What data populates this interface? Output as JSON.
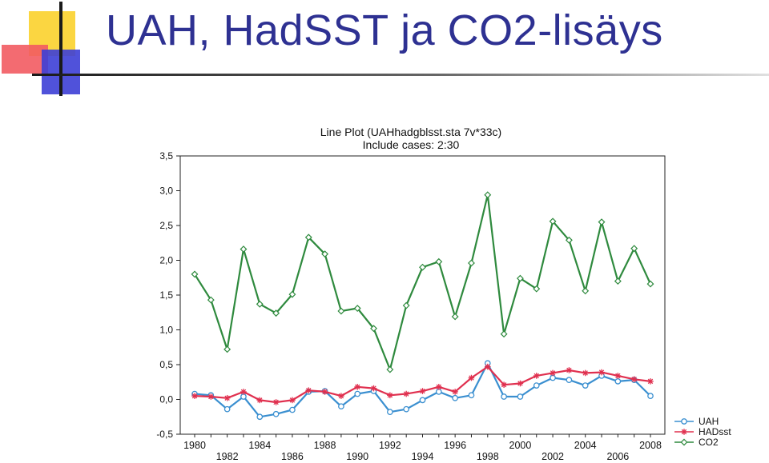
{
  "slide": {
    "title": "UAH, HadSST ja CO2-lisäys"
  },
  "colors": {
    "title": "#2e3192",
    "uah": "#3a8fd0",
    "hadsst": "#e0304f",
    "co2": "#2f8a3e"
  },
  "chart_data": {
    "type": "line",
    "title": "Line Plot (UAHhadgblsst.sta 7v*33c)",
    "subtitle": "Include cases: 2:30",
    "xlabel": "",
    "ylabel": "",
    "ylim": [
      -0.5,
      3.5
    ],
    "xlim": [
      1980,
      2008
    ],
    "grid": false,
    "legend_position": "bottom-right",
    "y_ticks": [
      "-0,5",
      "0,0",
      "0,5",
      "1,0",
      "1,5",
      "2,0",
      "2,5",
      "3,0",
      "3,5"
    ],
    "y_tick_values": [
      -0.5,
      0,
      0.5,
      1.0,
      1.5,
      2.0,
      2.5,
      3.0,
      3.5
    ],
    "x_ticks_upper": [
      "1980",
      "1984",
      "1988",
      "1992",
      "1996",
      "2000",
      "2004",
      "2008"
    ],
    "x_ticks_lower": [
      "1982",
      "1986",
      "1990",
      "1994",
      "1998",
      "2002",
      "2006"
    ],
    "x": [
      1980,
      1981,
      1982,
      1983,
      1984,
      1985,
      1986,
      1987,
      1988,
      1989,
      1990,
      1991,
      1992,
      1993,
      1994,
      1995,
      1996,
      1997,
      1998,
      1999,
      2000,
      2001,
      2002,
      2003,
      2004,
      2005,
      2006,
      2007,
      2008
    ],
    "series": [
      {
        "name": "UAH",
        "marker": "circle",
        "values": [
          0.08,
          0.06,
          -0.14,
          0.04,
          -0.25,
          -0.21,
          -0.15,
          0.11,
          0.12,
          -0.1,
          0.08,
          0.12,
          -0.18,
          -0.14,
          -0.01,
          0.11,
          0.02,
          0.06,
          0.52,
          0.04,
          0.04,
          0.2,
          0.31,
          0.28,
          0.2,
          0.34,
          0.26,
          0.28,
          0.05
        ]
      },
      {
        "name": "HADsst",
        "marker": "asterisk",
        "values": [
          0.05,
          0.04,
          0.02,
          0.11,
          -0.01,
          -0.04,
          -0.01,
          0.13,
          0.11,
          0.05,
          0.18,
          0.16,
          0.06,
          0.08,
          0.12,
          0.18,
          0.11,
          0.31,
          0.47,
          0.21,
          0.23,
          0.34,
          0.38,
          0.42,
          0.38,
          0.39,
          0.34,
          0.29,
          0.26
        ]
      },
      {
        "name": "CO2",
        "marker": "diamond",
        "values": [
          1.8,
          1.43,
          0.72,
          2.16,
          1.37,
          1.24,
          1.51,
          2.33,
          2.09,
          1.27,
          1.31,
          1.02,
          0.43,
          1.35,
          1.9,
          1.98,
          1.19,
          1.96,
          2.94,
          0.94,
          1.74,
          1.59,
          2.56,
          2.29,
          1.56,
          2.55,
          1.7,
          2.17,
          1.66
        ]
      }
    ]
  }
}
